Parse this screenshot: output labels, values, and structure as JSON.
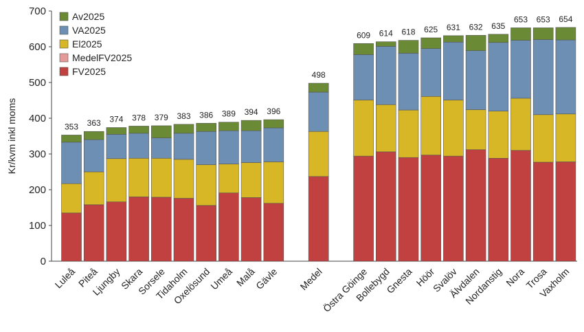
{
  "chart_data": {
    "type": "stacked_bar",
    "y_label": "Kr/kvm inkl moms",
    "categories": [
      "Luleå",
      "Piteå",
      "Ljungby",
      "Skara",
      "Sorsele",
      "Tidaholm",
      "Oxelösund",
      "Umeå",
      "Malå",
      "Gävle",
      "Medel",
      "Östra Göinge",
      "Bollebygd",
      "Gnesta",
      "Höör",
      "Svalöv",
      "Älvdalen",
      "Nordanstig",
      "Nora",
      "Trosa",
      "Vaxholm"
    ],
    "series": [
      {
        "name": "FV2025",
        "color": "#c0413f",
        "values": [
          135,
          158,
          166,
          180,
          179,
          176,
          156,
          191,
          178,
          162,
          237,
          294,
          306,
          290,
          297,
          294,
          312,
          288,
          310,
          277,
          278
        ]
      },
      {
        "name": "MedelFV2025",
        "color": "#e59a9a",
        "values": [
          null,
          null,
          null,
          null,
          null,
          null,
          null,
          null,
          null,
          null,
          null,
          null,
          null,
          null,
          null,
          null,
          null,
          null,
          null,
          null,
          null
        ]
      },
      {
        "name": "El2025",
        "color": "#d8b727",
        "values": [
          82,
          92,
          121,
          108,
          109,
          109,
          114,
          81,
          98,
          116,
          126,
          157,
          132,
          133,
          164,
          157,
          112,
          132,
          146,
          133,
          134
        ]
      },
      {
        "name": "VA2025",
        "color": "#6e8fb4",
        "values": [
          116,
          90,
          68,
          70,
          57,
          73,
          93,
          93,
          89,
          95,
          110,
          127,
          163,
          159,
          134,
          162,
          165,
          192,
          162,
          210,
          207
        ]
      },
      {
        "name": "Av2025",
        "color": "#6b8a35",
        "values": [
          20,
          23,
          19,
          20,
          34,
          25,
          23,
          24,
          29,
          23,
          25,
          31,
          13,
          36,
          30,
          18,
          43,
          23,
          35,
          33,
          35
        ]
      }
    ],
    "totals": [
      353,
      363,
      374,
      378,
      379,
      383,
      386,
      389,
      394,
      396,
      498,
      609,
      614,
      618,
      625,
      631,
      632,
      635,
      653,
      653,
      654
    ],
    "ylim": [
      0,
      700
    ],
    "yticks": [
      0,
      100,
      200,
      300,
      400,
      500,
      600,
      700
    ],
    "grid": false,
    "legend": "upper-left"
  }
}
